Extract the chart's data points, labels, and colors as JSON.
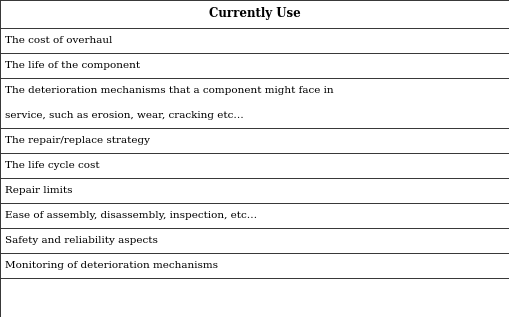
{
  "header": "Currently Use",
  "rows": [
    "The cost of overhaul",
    "The life of the component",
    "The deterioration mechanisms that a component might face in\nservice, such as erosion, wear, cracking etc…",
    "The repair/replace strategy",
    "The life cycle cost",
    "Repair limits",
    "Ease of assembly, disassembly, inspection, etc…",
    "Safety and reliability aspects",
    "Monitoring of deterioration mechanisms"
  ],
  "bg_color": "#ffffff",
  "border_color": "#333333",
  "header_bg": "#ffffff",
  "text_color": "#000000",
  "font_size": 7.5,
  "header_font_size": 8.5,
  "fig_width": 5.09,
  "fig_height": 3.17,
  "dpi": 100
}
